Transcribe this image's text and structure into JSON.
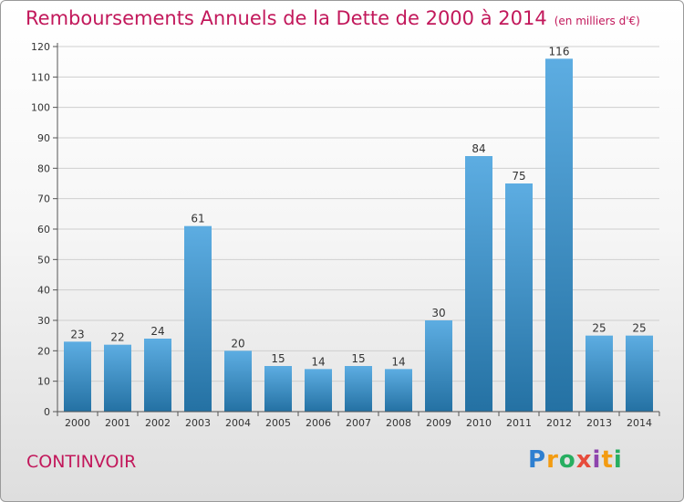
{
  "header": {
    "title": "Remboursements Annuels de la Dette de 2000 à 2014",
    "unit": "(en milliers d'€)"
  },
  "footer": {
    "town": "CONTINVOIR",
    "logo_letters": [
      "P",
      "r",
      "o",
      "x",
      "i",
      "t",
      "i"
    ],
    "logo_colors": [
      "#2e7fd0",
      "#f39c12",
      "#27ae60",
      "#e74c3c",
      "#8e44ad",
      "#f39c12",
      "#27ae60"
    ]
  },
  "colors": {
    "title": "#c2185b",
    "bar_top": "#5dade2",
    "bar_bottom": "#2471a3",
    "grid": "#cfcfcf"
  },
  "chart_data": {
    "type": "bar",
    "title": "Remboursements Annuels de la Dette de 2000 à 2014",
    "subtitle": "(en milliers d'€)",
    "xlabel": "",
    "ylabel": "",
    "categories": [
      "2000",
      "2001",
      "2002",
      "2003",
      "2004",
      "2005",
      "2006",
      "2007",
      "2008",
      "2009",
      "2010",
      "2011",
      "2012",
      "2013",
      "2014"
    ],
    "values": [
      23,
      22,
      24,
      61,
      20,
      15,
      14,
      15,
      14,
      30,
      84,
      75,
      116,
      25,
      25
    ],
    "ylim": [
      0,
      120
    ],
    "yticks": [
      0,
      10,
      20,
      30,
      40,
      50,
      60,
      70,
      80,
      90,
      100,
      110,
      120
    ],
    "grid": true,
    "legend": "none"
  }
}
